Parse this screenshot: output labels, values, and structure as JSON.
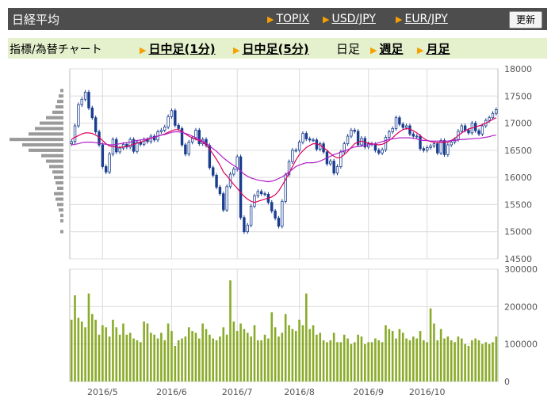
{
  "header": {
    "title": "日経平均",
    "links": [
      "TOPIX",
      "USD/JPY",
      "EUR/JPY"
    ],
    "refresh_label": "更新"
  },
  "subnav": {
    "indicator_label": "指標/為替チャート",
    "items": [
      {
        "label": "日中足(1分)",
        "link": true
      },
      {
        "label": "日中足(5分)",
        "link": true
      },
      {
        "label": "日足",
        "link": false
      },
      {
        "label": "週足",
        "link": true
      },
      {
        "label": "月足",
        "link": true
      }
    ]
  },
  "colors": {
    "candle": "#1a3d8f",
    "ma_short": "#e0005a",
    "ma_long": "#b020c8",
    "volume": "#8aab2a",
    "profile": "#9a9a9a",
    "grid": "#dcdcdc"
  },
  "chart_data": [
    {
      "type": "candlestick",
      "y_ticks": [
        14500,
        15000,
        15500,
        16000,
        16500,
        17000,
        17500,
        18000
      ],
      "ylim": [
        14500,
        18000
      ],
      "x_tick_labels": [
        "2016/5",
        "2016/6",
        "2016/7",
        "2016/8",
        "2016/9",
        "2016/10"
      ],
      "x_tick_index": [
        9,
        29,
        48,
        66,
        86,
        103
      ],
      "grid": true,
      "series": [
        {
          "values": [
            16660,
            16950,
            17340,
            17440,
            17570,
            17280,
            17100,
            16840,
            16600,
            16200,
            16100,
            16430,
            16700,
            16470,
            16540,
            16610,
            16560,
            16700,
            16480,
            16650,
            16610,
            16700,
            16660,
            16760,
            16690,
            16840,
            16870,
            16930,
            17120,
            17230,
            16960,
            16900,
            16600,
            16430,
            16650,
            16720,
            16870,
            16620,
            16700,
            16590,
            16180,
            16040,
            15820,
            15700,
            15400,
            15830,
            16060,
            16150,
            16380,
            15260,
            15000,
            15120,
            15470,
            15660,
            15740,
            15700,
            15690,
            15540,
            15380,
            15250,
            15100,
            15560,
            16050,
            16290,
            16500,
            16500,
            16650,
            16810,
            16710,
            16690,
            16690,
            16520,
            16620,
            16470,
            16250,
            16300,
            16080,
            16200,
            16470,
            16620,
            16760,
            16870,
            16850,
            16600,
            16720,
            16560,
            16620,
            16610,
            16500,
            16450,
            16510,
            16740,
            16840,
            16900,
            17100,
            16980,
            16920,
            16950,
            16800,
            16760,
            16760,
            16530,
            16500,
            16550,
            16580,
            16620,
            16450,
            16680,
            16420,
            16600,
            16650,
            16700,
            16850,
            16950,
            16870,
            16820,
            17000,
            16860,
            16800,
            16950,
            17050,
            17100,
            17180,
            17250
          ],
          "name": ""
        },
        {
          "values": [
            16700,
            16740,
            16770,
            16800,
            16820,
            16820,
            16810,
            16780,
            16740,
            16680,
            16620,
            16580,
            16570,
            16560,
            16550,
            16560,
            16570,
            16590,
            16610,
            16630,
            16650,
            16670,
            16700,
            16720,
            16740,
            16760,
            16780,
            16800,
            16830,
            16860,
            16880,
            16880,
            16850,
            16800,
            16760,
            16730,
            16700,
            16680,
            16650,
            16600,
            16520,
            16430,
            16330,
            16230,
            16100,
            16030,
            15950,
            15870,
            15800,
            15720,
            15650,
            15600,
            15560,
            15540,
            15560,
            15580,
            15600,
            15620,
            15640,
            15680,
            15750,
            15850,
            15960,
            16080,
            16200,
            16320,
            16420,
            16490,
            16550,
            16590,
            16620,
            16620,
            16600,
            16550,
            16500,
            16440,
            16390,
            16360,
            16370,
            16420,
            16480,
            16550,
            16620,
            16650,
            16670,
            16650,
            16630,
            16620,
            16610,
            16600,
            16610,
            16640,
            16680,
            16730,
            16790,
            16840,
            16880,
            16900,
            16890,
            16860,
            16820,
            16770,
            16720,
            16680,
            16660,
            16650,
            16640,
            16650,
            16640,
            16650,
            16680,
            16720,
            16770,
            16820,
            16860,
            16890,
            16910,
            16930,
            16950,
            16970,
            17000,
            17030,
            17070,
            17100
          ],
          "name": ""
        },
        {
          "values": [
            16600,
            16610,
            16620,
            16640,
            16650,
            16650,
            16650,
            16640,
            16630,
            16620,
            16610,
            16600,
            16600,
            16610,
            16620,
            16630,
            16640,
            16650,
            16670,
            16680,
            16690,
            16700,
            16710,
            16730,
            16740,
            16760,
            16780,
            16790,
            16810,
            16830,
            16840,
            16840,
            16830,
            16810,
            16790,
            16760,
            16730,
            16700,
            16670,
            16630,
            16580,
            16530,
            16480,
            16420,
            16360,
            16310,
            16260,
            16220,
            16180,
            16120,
            16060,
            16020,
            15990,
            15970,
            15950,
            15940,
            15930,
            15920,
            15930,
            15950,
            15980,
            16010,
            16050,
            16100,
            16150,
            16200,
            16230,
            16250,
            16270,
            16270,
            16270,
            16280,
            16300,
            16330,
            16360,
            16390,
            16420,
            16440,
            16470,
            16490,
            16510,
            16540,
            16560,
            16570,
            16580,
            16590,
            16600,
            16610,
            16620,
            16640,
            16660,
            16680,
            16700,
            16710,
            16720,
            16730,
            16730,
            16730,
            16730,
            16720,
            16710,
            16690,
            16680,
            16680,
            16670,
            16670,
            16670,
            16670,
            16670,
            16670,
            16680,
            16680,
            16690,
            16700,
            16700,
            16710,
            16710,
            16720,
            16720,
            16730,
            16740,
            16750,
            16770,
            16780
          ],
          "name": ""
        }
      ]
    },
    {
      "type": "bar",
      "y_ticks": [
        0,
        100000,
        200000,
        300000
      ],
      "ylim": [
        0,
        300000
      ],
      "values": [
        165000,
        230000,
        170000,
        160000,
        145000,
        235000,
        180000,
        165000,
        125000,
        150000,
        145000,
        120000,
        165000,
        145000,
        125000,
        155000,
        125000,
        130000,
        115000,
        110000,
        105000,
        160000,
        155000,
        130000,
        125000,
        115000,
        130000,
        110000,
        155000,
        135000,
        95000,
        110000,
        115000,
        120000,
        145000,
        135000,
        130000,
        115000,
        155000,
        140000,
        125000,
        115000,
        110000,
        120000,
        145000,
        125000,
        270000,
        160000,
        135000,
        155000,
        140000,
        130000,
        120000,
        150000,
        110000,
        110000,
        125000,
        115000,
        185000,
        145000,
        120000,
        130000,
        180000,
        150000,
        140000,
        135000,
        165000,
        150000,
        235000,
        140000,
        150000,
        125000,
        130000,
        110000,
        105000,
        110000,
        130000,
        105000,
        105000,
        125000,
        115000,
        100000,
        105000,
        125000,
        120000,
        100000,
        105000,
        105000,
        115000,
        110000,
        105000,
        150000,
        140000,
        135000,
        115000,
        140000,
        130000,
        115000,
        110000,
        120000,
        115000,
        135000,
        110000,
        105000,
        195000,
        155000,
        110000,
        140000,
        115000,
        120000,
        110000,
        105000,
        120000,
        115000,
        100000,
        95000,
        110000,
        115000,
        110000,
        100000,
        105000,
        100000,
        105000,
        120000
      ],
      "name": ""
    },
    {
      "type": "bar",
      "orientation": "horizontal",
      "bins": [
        17700,
        17600,
        17500,
        17400,
        17300,
        17200,
        17100,
        17000,
        16900,
        16800,
        16700,
        16600,
        16500,
        16400,
        16300,
        16200,
        16100,
        16000,
        15900,
        15800,
        15700,
        15600,
        15500,
        15400,
        15300,
        15200,
        15100,
        15000,
        14900
      ],
      "values": [
        0,
        2,
        3,
        4,
        5,
        7,
        11,
        15,
        18,
        22,
        34,
        26,
        22,
        14,
        11,
        9,
        7,
        6,
        5,
        4,
        6,
        5,
        4,
        3,
        2,
        2,
        0,
        2,
        0
      ],
      "name": ""
    }
  ]
}
